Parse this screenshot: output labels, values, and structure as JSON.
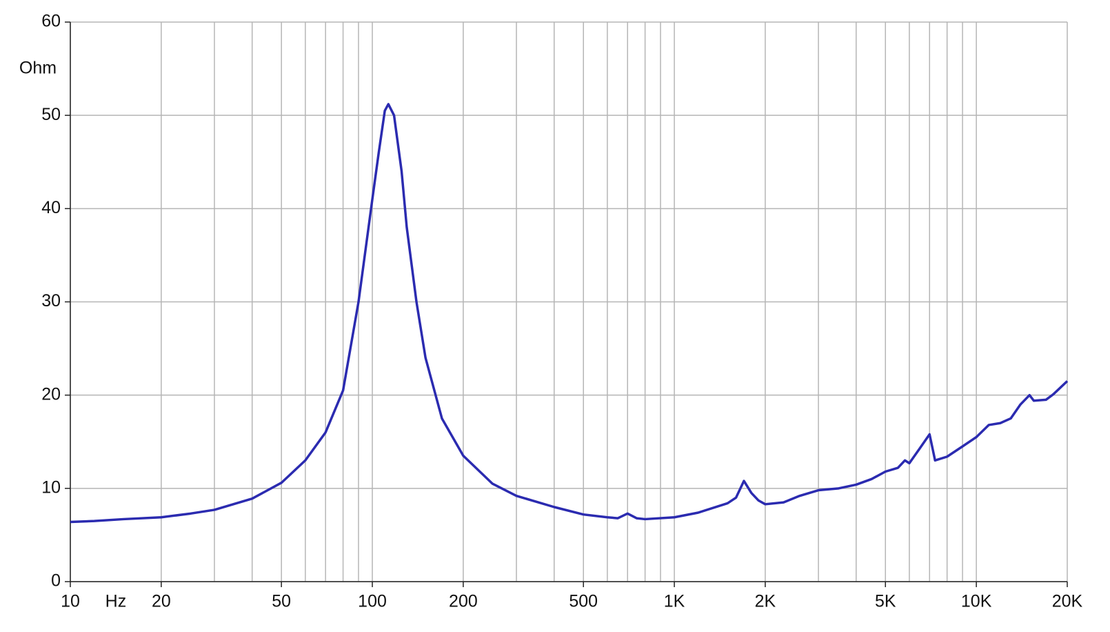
{
  "chart_data": {
    "type": "line",
    "ylabel": "Ohm",
    "xlabel": "Hz",
    "xscale": "log",
    "color": "#2b2bb0",
    "grid": true,
    "xlim": [
      10,
      20000
    ],
    "ylim": [
      0,
      60
    ],
    "yticks": [
      0,
      10,
      20,
      30,
      40,
      50,
      60
    ],
    "xticks": [
      10,
      20,
      50,
      100,
      200,
      500,
      {
        "value": 1000,
        "label": "1K"
      },
      {
        "value": 2000,
        "label": "2K"
      },
      {
        "value": 5000,
        "label": "5K"
      },
      {
        "value": 10000,
        "label": "10K"
      },
      {
        "value": 20000,
        "label": "20K"
      }
    ],
    "xgrid": [
      10,
      20,
      30,
      40,
      50,
      60,
      70,
      80,
      90,
      100,
      200,
      300,
      400,
      500,
      600,
      700,
      800,
      900,
      1000,
      2000,
      3000,
      4000,
      5000,
      6000,
      7000,
      8000,
      9000,
      10000,
      20000
    ],
    "x": [
      10,
      12,
      15,
      20,
      25,
      30,
      40,
      50,
      60,
      70,
      80,
      90,
      100,
      105,
      110,
      113,
      118,
      125,
      130,
      140,
      150,
      170,
      200,
      250,
      300,
      400,
      500,
      600,
      650,
      700,
      750,
      800,
      1000,
      1200,
      1500,
      1600,
      1700,
      1800,
      1900,
      2000,
      2300,
      2600,
      3000,
      3500,
      4000,
      4500,
      5000,
      5500,
      5800,
      6000,
      6500,
      7000,
      7300,
      8000,
      9000,
      10000,
      11000,
      12000,
      13000,
      14000,
      15000,
      15500,
      17000,
      18000,
      20000
    ],
    "values": [
      6.4,
      6.5,
      6.7,
      6.9,
      7.3,
      7.7,
      8.9,
      10.6,
      13,
      16,
      20.5,
      30,
      41,
      46,
      50.5,
      51.2,
      50,
      44,
      38,
      30,
      24,
      17.5,
      13.5,
      10.5,
      9.2,
      8,
      7.2,
      6.9,
      6.8,
      7.3,
      6.8,
      6.7,
      6.9,
      7.4,
      8.4,
      9,
      10.8,
      9.5,
      8.7,
      8.3,
      8.5,
      9.2,
      9.8,
      10,
      10.4,
      11,
      11.8,
      12.2,
      13,
      12.7,
      14.3,
      15.8,
      13,
      13.4,
      14.5,
      15.5,
      16.8,
      17,
      17.5,
      19,
      20,
      19.4,
      19.5,
      20.1,
      21.5
    ]
  }
}
